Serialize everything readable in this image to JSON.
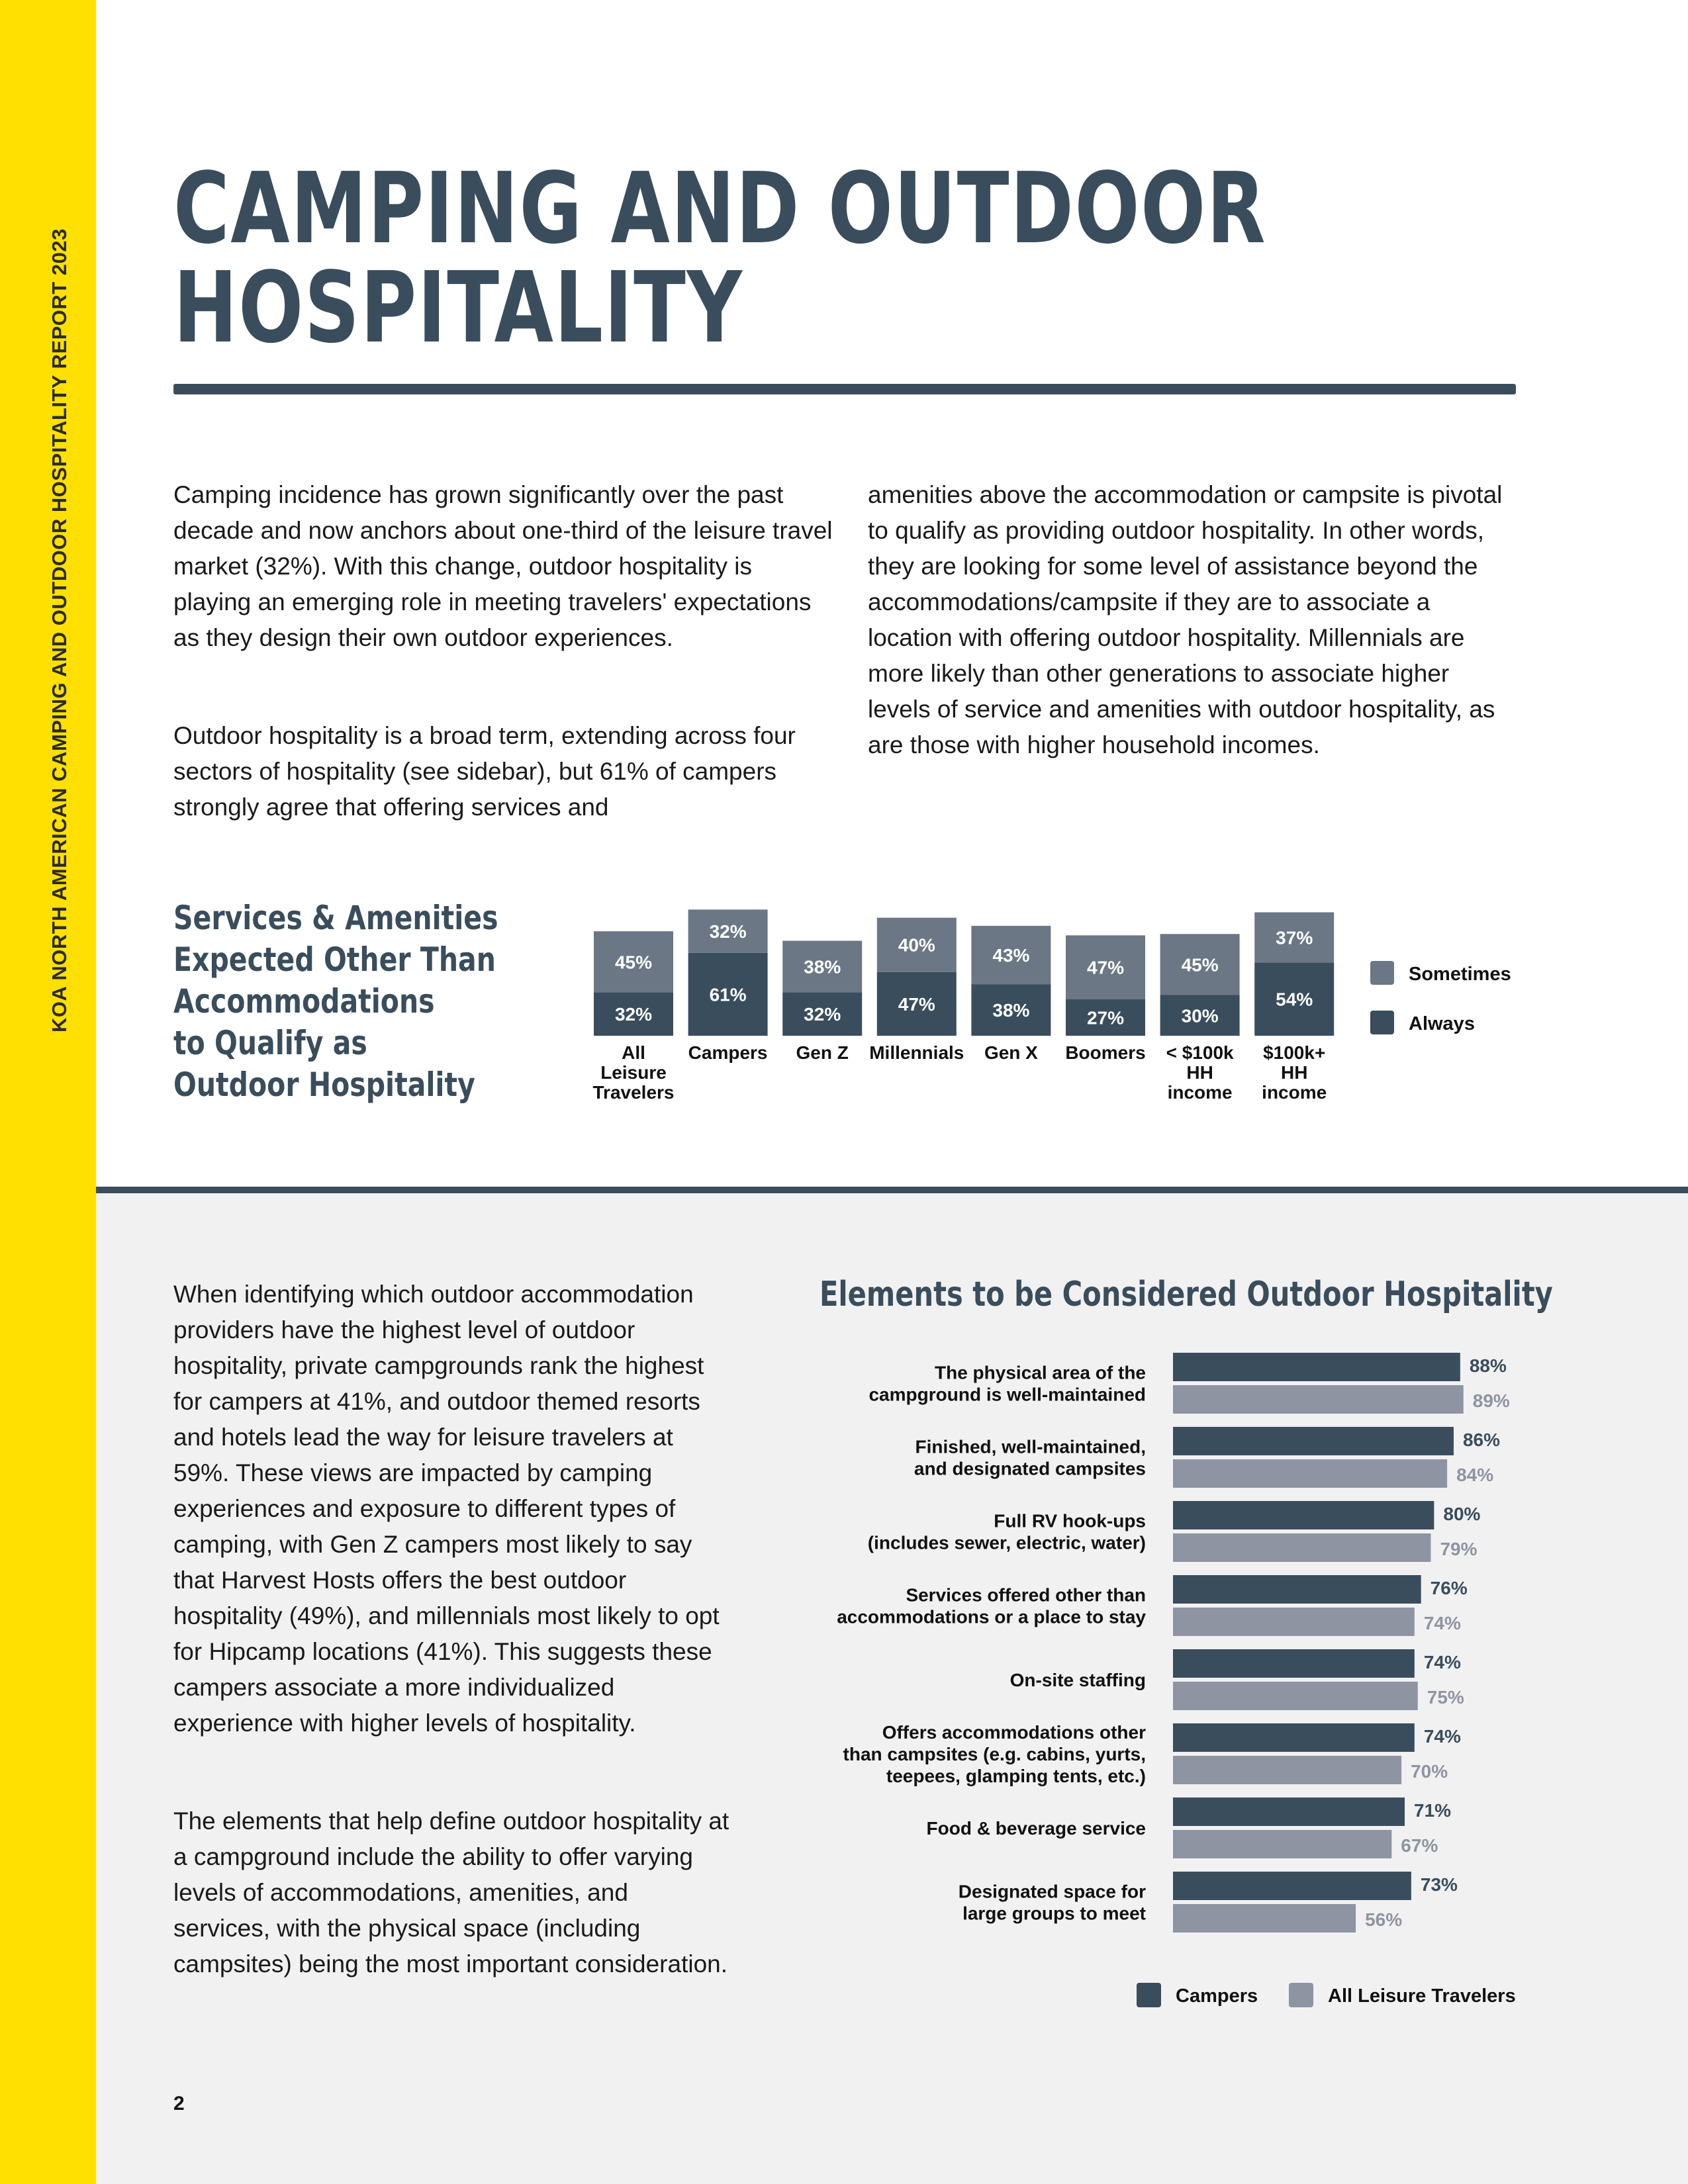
{
  "sidebar": {
    "text": "KOA NORTH AMERICAN CAMPING AND OUTDOOR HOSPITALITY REPORT 2023"
  },
  "title": {
    "line1": "CAMPING AND OUTDOOR",
    "line2": "HOSPITALITY"
  },
  "intro": {
    "col1_p1": "Camping incidence has grown significantly over the past decade and now anchors about one-third of the leisure travel market (32%). With this change, outdoor hospitality is playing an emerging role in meeting travelers' expectations as they design their own outdoor experiences.",
    "col1_p2": "Outdoor hospitality is a broad term, extending across four sectors of hospitality (see sidebar), but 61% of campers strongly agree that offering services and",
    "col2_p1": "amenities above the accommodation or campsite is pivotal to qualify as providing outdoor hospitality. In other words, they are looking for some level of assistance beyond the accommodations/campsite if they are to associate a location with offering outdoor hospitality. Millennials are more likely than other generations to associate higher levels of service and amenities with outdoor hospitality, as are those with higher household incomes."
  },
  "lower": {
    "p1": "When identifying which outdoor accommodation providers have the highest level of outdoor hospitality, private campgrounds rank the highest for campers at 41%, and outdoor themed resorts and hotels lead the way for leisure travelers at 59%. These views are impacted by camping experiences and exposure to different types of camping, with Gen Z campers most likely to say that Harvest Hosts offers the best outdoor hospitality (49%), and millennials most likely to opt for Hipcamp locations (41%). This suggests these campers associate a more individualized experience with higher levels of hospitality.",
    "p2": "The elements that help define outdoor hospitality at a campground include the ability to offer varying levels of accommodations, amenities, and services, with the physical space (including campsites) being the most important consideration."
  },
  "page_number": "2",
  "chart_data": [
    {
      "type": "bar",
      "stacked": true,
      "title": [
        "Services & Amenities",
        "Expected Other Than",
        "Accommodations",
        "to Qualify as",
        "Outdoor Hospitality"
      ],
      "categories": [
        [
          "All",
          "Leisure",
          "Travelers"
        ],
        [
          "Campers"
        ],
        [
          "Gen Z"
        ],
        [
          "Millennials"
        ],
        [
          "Gen X"
        ],
        [
          "Boomers"
        ],
        [
          "< $100k",
          "HH",
          "income"
        ],
        [
          "$100k+",
          "HH",
          "income"
        ]
      ],
      "series": [
        {
          "name": "Always",
          "color": "#3a4d5c",
          "values": [
            32,
            61,
            32,
            47,
            38,
            27,
            30,
            54
          ]
        },
        {
          "name": "Sometimes",
          "color": "#6b7785",
          "values": [
            45,
            32,
            38,
            40,
            43,
            47,
            45,
            37
          ]
        }
      ],
      "legend_position": "right",
      "legend_order": [
        "Sometimes",
        "Always"
      ]
    },
    {
      "type": "bar",
      "orientation": "horizontal",
      "title": "Elements to be Considered Outdoor Hospitality",
      "categories": [
        [
          "The physical area of the",
          "campground is well-maintained"
        ],
        [
          "Finished, well-maintained,",
          "and designated campsites"
        ],
        [
          "Full RV hook-ups",
          "(includes sewer, electric, water)"
        ],
        [
          "Services offered other than",
          "accommodations or a place to stay"
        ],
        [
          "On-site staffing"
        ],
        [
          "Offers accommodations other",
          "than campsites (e.g. cabins, yurts,",
          "teepees, glamping tents, etc.)"
        ],
        [
          "Food & beverage service"
        ],
        [
          "Designated space for",
          "large groups to meet"
        ]
      ],
      "series": [
        {
          "name": "Campers",
          "color": "#3a4d5c",
          "values": [
            88,
            86,
            80,
            76,
            74,
            74,
            71,
            73
          ]
        },
        {
          "name": "All Leisure Travelers",
          "color": "#8e94a2",
          "values": [
            89,
            84,
            79,
            74,
            75,
            70,
            67,
            56
          ]
        }
      ],
      "legend_position": "bottom"
    }
  ]
}
